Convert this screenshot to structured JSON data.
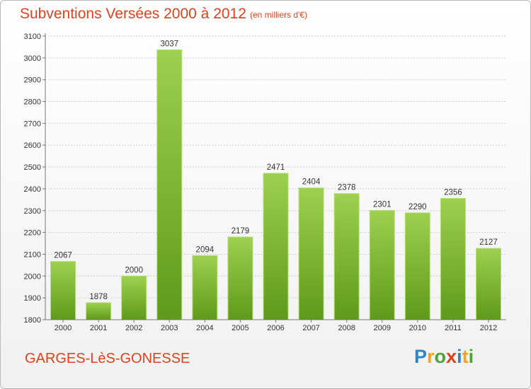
{
  "header": {
    "title": "Subventions Versées 2000 à 2012",
    "subtitle": "(en milliers d'€)"
  },
  "footer": {
    "commune": "GARGES-LèS-GONESSE",
    "brand_letters": [
      {
        "char": "P",
        "color": "#2f83c6"
      },
      {
        "char": "r",
        "color": "#f2a21e"
      },
      {
        "char": "o",
        "color": "#4fa336"
      },
      {
        "char": "x",
        "color": "#e0411a"
      },
      {
        "char": "i",
        "color": "#2f83c6"
      },
      {
        "char": "t",
        "color": "#f2a21e"
      },
      {
        "char": "i",
        "color": "#4fa336"
      }
    ]
  },
  "chart_data": {
    "type": "bar",
    "title": "Subventions Versées 2000 à 2012",
    "subtitle": "(en milliers d'€)",
    "xlabel": "",
    "ylabel": "",
    "categories": [
      "2000",
      "2001",
      "2002",
      "2003",
      "2004",
      "2005",
      "2006",
      "2007",
      "2008",
      "2009",
      "2010",
      "2011",
      "2012"
    ],
    "values": [
      2067,
      1878,
      2000,
      3037,
      2094,
      2179,
      2471,
      2404,
      2378,
      2301,
      2290,
      2356,
      2127
    ],
    "ylim": [
      1800,
      3100
    ],
    "yticks": [
      1800,
      1900,
      2000,
      2100,
      2200,
      2300,
      2400,
      2500,
      2600,
      2700,
      2800,
      2900,
      3000,
      3100
    ],
    "grid": true,
    "legend": "none",
    "colors": {
      "bar_top": "#9dd04e",
      "bar_bottom": "#5f9a1a",
      "grid": "#cfcfcf",
      "axis": "#777777"
    }
  }
}
